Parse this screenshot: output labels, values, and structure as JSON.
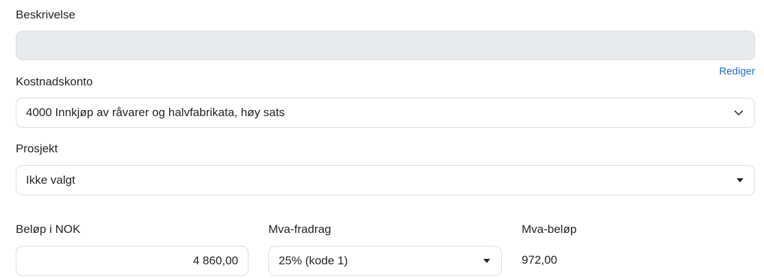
{
  "fields": {
    "description": {
      "label": "Beskrivelse",
      "value": ""
    },
    "edit_link": "Rediger",
    "cost_account": {
      "label": "Kostnadskonto",
      "value": "4000 Innkjøp av råvarer og halvfabrikata, høy sats"
    },
    "project": {
      "label": "Prosjekt",
      "value": "Ikke valgt"
    },
    "amount": {
      "label": "Beløp i NOK",
      "value": "4 860,00"
    },
    "vat_deduction": {
      "label": "Mva-fradrag",
      "value": "25% (kode 1)"
    },
    "vat_amount": {
      "label": "Mva-beløp",
      "value": "972,00"
    }
  },
  "colors": {
    "link": "#1a6bd0",
    "disabled_bg": "#e8ebee"
  }
}
